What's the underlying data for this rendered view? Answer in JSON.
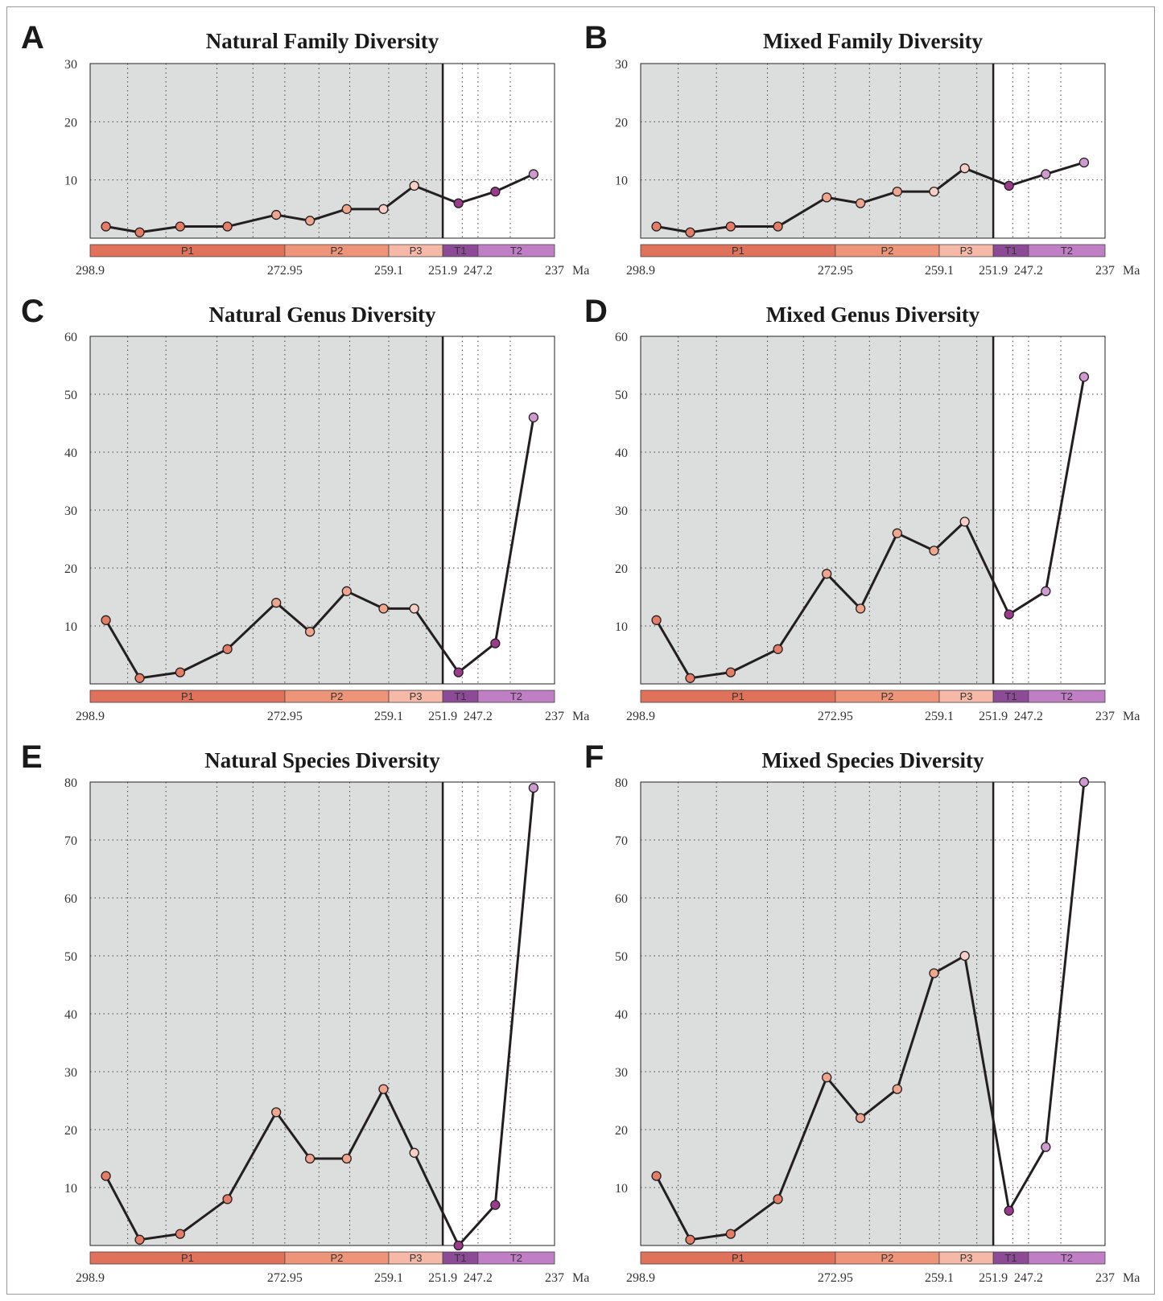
{
  "figure": {
    "colors": {
      "permian_shade": "#dcdddd",
      "line": "#231f20",
      "P1": "#e0715a",
      "P2": "#ee9478",
      "P3": "#f6b9a8",
      "T1": "#8c4a97",
      "T2": "#c07fc4",
      "point_P1": "#e57c66",
      "point_P2": "#f0a58e",
      "point_P3": "#f8cfc4",
      "point_T1": "#9a3a8c",
      "point_T2": "#cf9ad0"
    },
    "stages": [
      {
        "name": "P1",
        "start": 298.9,
        "end": 272.95
      },
      {
        "name": "P2",
        "start": 272.95,
        "end": 259.1
      },
      {
        "name": "P3",
        "start": 259.1,
        "end": 251.9
      },
      {
        "name": "T1",
        "start": 251.9,
        "end": 247.2
      },
      {
        "name": "T2",
        "start": 247.2,
        "end": 237
      }
    ],
    "age_ticks": [
      "298.9",
      "272.95",
      "259.1",
      "251.9",
      "247.2",
      "237"
    ],
    "age_unit": "Ma"
  },
  "chart_data": [
    {
      "letter": "A",
      "title": "Natural Family Diversity",
      "type": "line",
      "ylim": [
        0,
        30
      ],
      "yticks": [
        10,
        20,
        30
      ],
      "boundary_index": 7,
      "values": [
        2,
        1,
        2,
        2,
        4,
        3,
        5,
        5,
        9,
        6,
        8,
        11
      ],
      "point_stage": [
        "P1",
        "P1",
        "P1",
        "P1",
        "P2",
        "P2",
        "P2",
        "P3",
        "P3",
        "T1",
        "T1",
        "T2"
      ]
    },
    {
      "letter": "B",
      "title": "Mixed Family Diversity",
      "type": "line",
      "ylim": [
        0,
        30
      ],
      "yticks": [
        10,
        20,
        30
      ],
      "boundary_index": 7,
      "values": [
        2,
        1,
        2,
        2,
        7,
        6,
        8,
        8,
        12,
        9,
        11,
        13
      ],
      "point_stage": [
        "P1",
        "P1",
        "P1",
        "P1",
        "P2",
        "P2",
        "P2",
        "P3",
        "P3",
        "T1",
        "T2",
        "T2"
      ]
    },
    {
      "letter": "C",
      "title": "Natural Genus Diversity",
      "type": "line",
      "ylim": [
        0,
        60
      ],
      "yticks": [
        10,
        20,
        30,
        40,
        50,
        60
      ],
      "boundary_index": 7,
      "values": [
        11,
        1,
        2,
        6,
        14,
        9,
        16,
        13,
        13,
        2,
        7,
        46
      ],
      "point_stage": [
        "P1",
        "P1",
        "P1",
        "P1",
        "P2",
        "P2",
        "P2",
        "P2",
        "P3",
        "T1",
        "T1",
        "T2"
      ]
    },
    {
      "letter": "D",
      "title": "Mixed Genus Diversity",
      "type": "line",
      "ylim": [
        0,
        60
      ],
      "yticks": [
        10,
        20,
        30,
        40,
        50,
        60
      ],
      "boundary_index": 7,
      "values": [
        11,
        1,
        2,
        6,
        19,
        13,
        26,
        23,
        28,
        12,
        16,
        53
      ],
      "point_stage": [
        "P1",
        "P1",
        "P1",
        "P1",
        "P2",
        "P2",
        "P2",
        "P2",
        "P3",
        "T1",
        "T2",
        "T2"
      ]
    },
    {
      "letter": "E",
      "title": "Natural Species Diversity",
      "type": "line",
      "ylim": [
        0,
        80
      ],
      "yticks": [
        10,
        20,
        30,
        40,
        50,
        60,
        70,
        80
      ],
      "boundary_index": 7,
      "values": [
        12,
        1,
        2,
        8,
        23,
        15,
        15,
        27,
        16,
        0,
        7,
        79
      ],
      "point_stage": [
        "P1",
        "P1",
        "P1",
        "P1",
        "P2",
        "P2",
        "P2",
        "P2",
        "P3",
        "T1",
        "T1",
        "T2"
      ]
    },
    {
      "letter": "F",
      "title": "Mixed Species Diversity",
      "type": "line",
      "ylim": [
        0,
        80
      ],
      "yticks": [
        10,
        20,
        30,
        40,
        50,
        60,
        70,
        80
      ],
      "boundary_index": 7,
      "values": [
        12,
        1,
        2,
        8,
        29,
        22,
        27,
        47,
        50,
        6,
        17,
        80
      ],
      "point_stage": [
        "P1",
        "P1",
        "P1",
        "P1",
        "P2",
        "P2",
        "P2",
        "P2",
        "P3",
        "T1",
        "T2",
        "T2"
      ]
    }
  ]
}
